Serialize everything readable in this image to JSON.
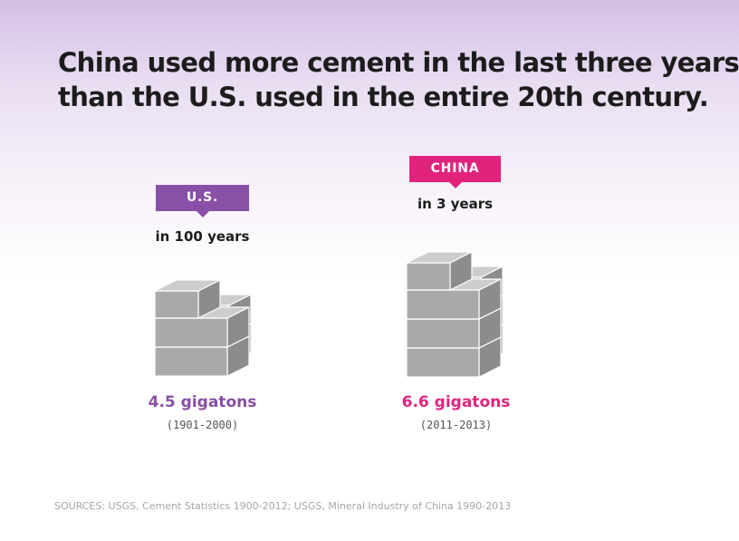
{
  "headline": {
    "line1": "China used more cement in the last three years",
    "line2": "than the U.S. used in the entire 20th century."
  },
  "colors": {
    "us": "#8a4fa6",
    "china": "#e2237d"
  },
  "chart_data": {
    "type": "bar",
    "categories": [
      "U.S.",
      "CHINA"
    ],
    "values": [
      4.5,
      6.6
    ],
    "unit": "gigatons",
    "series": [
      {
        "label": "U.S.",
        "period": "in 100 years",
        "amount": "4.5 gigatons",
        "years": "(1901-2000)",
        "value": 4.5
      },
      {
        "label": "CHINA",
        "period": "in 3 years",
        "amount": "6.6 gigatons",
        "years": "(2011-2013)",
        "value": 6.6
      }
    ]
  },
  "sources": "SOURCES: USGS, Cement Statistics 1900-2012; USGS, Mineral Industry of China 1990-2013"
}
